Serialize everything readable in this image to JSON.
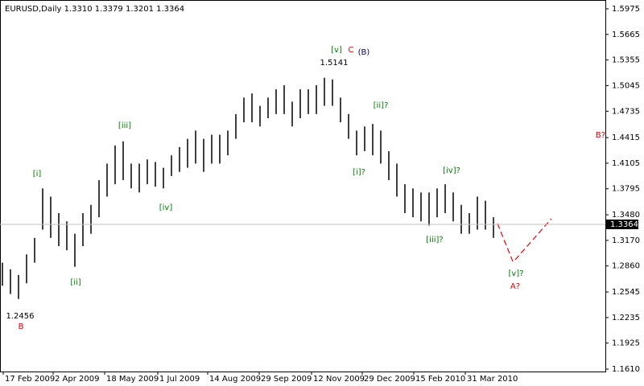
{
  "chart_data": {
    "type": "ohlc",
    "title": "EURUSD,Daily  1.3310 1.3379 1.3201 1.3364",
    "color": "#000000",
    "high": [
      1.29,
      1.282,
      1.275,
      1.3,
      1.32,
      1.38,
      1.37,
      1.35,
      1.34,
      1.325,
      1.35,
      1.36,
      1.39,
      1.41,
      1.432,
      1.437,
      1.41,
      1.41,
      1.415,
      1.412,
      1.405,
      1.42,
      1.43,
      1.44,
      1.45,
      1.44,
      1.445,
      1.445,
      1.45,
      1.47,
      1.49,
      1.495,
      1.48,
      1.49,
      1.5,
      1.505,
      1.485,
      1.5,
      1.5,
      1.505,
      1.514,
      1.512,
      1.49,
      1.47,
      1.45,
      1.455,
      1.458,
      1.45,
      1.425,
      1.41,
      1.385,
      1.38,
      1.375,
      1.375,
      1.38,
      1.385,
      1.375,
      1.36,
      1.35,
      1.37,
      1.365,
      1.345
    ],
    "low": [
      1.262,
      1.252,
      1.246,
      1.265,
      1.29,
      1.33,
      1.32,
      1.31,
      1.305,
      1.285,
      1.31,
      1.325,
      1.345,
      1.37,
      1.385,
      1.39,
      1.38,
      1.375,
      1.385,
      1.382,
      1.38,
      1.395,
      1.4,
      1.405,
      1.41,
      1.4,
      1.41,
      1.41,
      1.42,
      1.44,
      1.46,
      1.46,
      1.455,
      1.465,
      1.47,
      1.47,
      1.455,
      1.465,
      1.47,
      1.47,
      1.48,
      1.48,
      1.46,
      1.44,
      1.42,
      1.425,
      1.42,
      1.41,
      1.39,
      1.37,
      1.35,
      1.345,
      1.34,
      1.335,
      1.345,
      1.35,
      1.34,
      1.325,
      1.325,
      1.33,
      1.33,
      1.32
    ],
    "last_price": 1.3364,
    "ylim": [
      1.1581,
      1.6082
    ],
    "yticks": [
      1.5975,
      1.5665,
      1.5355,
      1.5045,
      1.4735,
      1.4415,
      1.4105,
      1.3795,
      {
        "value": 1.348,
        "label": "1.3480"
      },
      {
        "value": 1.317,
        "label": "1.3170"
      },
      {
        "value": 1.286,
        "label": "1.2860"
      },
      1.2545,
      1.2235,
      1.1925,
      {
        "value": 1.161,
        "label": "1.1610"
      }
    ],
    "xlim": [
      -0.3,
      74.9
    ],
    "xticks": [
      {
        "value": 0.1,
        "label": "17 Feb 2009"
      },
      {
        "value": 6.3,
        "label": "2 Apr 2009"
      },
      {
        "value": 12.7,
        "label": "18 May 2009"
      },
      {
        "value": 19.3,
        "label": "1 Jul 2009"
      },
      {
        "value": 25.5,
        "label": "14 Aug 2009"
      },
      {
        "value": 31.9,
        "label": "29 Sep 2009"
      },
      {
        "value": 38.4,
        "label": "12 Nov 2009"
      },
      {
        "value": 44.7,
        "label": "29 Dec 2009"
      },
      {
        "value": 51.1,
        "label": "15 Feb 2010"
      },
      {
        "value": 57.5,
        "label": "31 Mar 2010"
      }
    ],
    "annotations": [
      "[i]",
      "[ii]",
      "[iii]",
      "[iv]",
      "[v]",
      "C",
      "(B)",
      "1.5141",
      "[ii]?",
      "[i]?",
      "[iv]?",
      "[iii]?",
      "[v]?",
      "A?",
      "B?",
      "1.2456",
      "B"
    ]
  }
}
